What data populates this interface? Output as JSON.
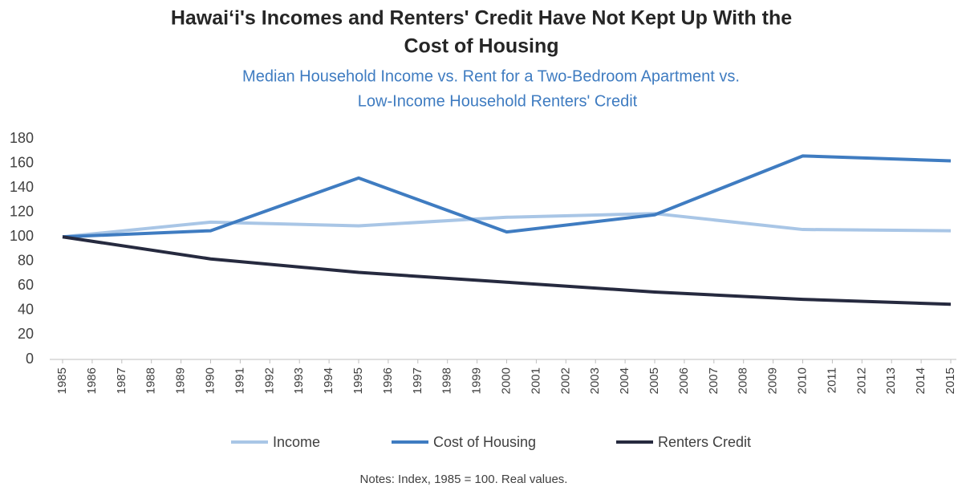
{
  "chart_data": {
    "type": "line",
    "title": [
      "Hawai‘i's Incomes and Renters' Credit Have Not Kept Up With the",
      "Cost of Housing"
    ],
    "subtitle": [
      "Median Household Income vs. Rent for a Two-Bedroom Apartment vs.",
      "Low-Income Household Renters' Credit"
    ],
    "note": "Notes: Index, 1985 = 100. Real values.",
    "x": [
      1985,
      1990,
      1995,
      2000,
      2005,
      2010,
      2015
    ],
    "series": [
      {
        "name": "Income",
        "color": "#a9c6e6",
        "values": [
          100,
          112,
          109,
          116,
          119,
          106,
          105
        ]
      },
      {
        "name": "Cost of Housing",
        "color": "#3f7cc1",
        "values": [
          100,
          105,
          148,
          104,
          118,
          166,
          162
        ]
      },
      {
        "name": "Renters Credit",
        "color": "#262a3f",
        "values": [
          100,
          82,
          71,
          63,
          55,
          49,
          45
        ]
      }
    ],
    "xlim": [
      1985,
      2015
    ],
    "xticks": [
      1985,
      1986,
      1987,
      1988,
      1989,
      1990,
      1991,
      1992,
      1993,
      1994,
      1995,
      1996,
      1997,
      1998,
      1999,
      2000,
      2001,
      2002,
      2003,
      2004,
      2005,
      2006,
      2007,
      2008,
      2009,
      2010,
      2011,
      2012,
      2013,
      2014,
      2015
    ],
    "ylim": [
      0,
      180
    ],
    "yticks": [
      0,
      20,
      40,
      60,
      80,
      100,
      120,
      140,
      160,
      180
    ],
    "grid": false,
    "legend": "bottom"
  }
}
